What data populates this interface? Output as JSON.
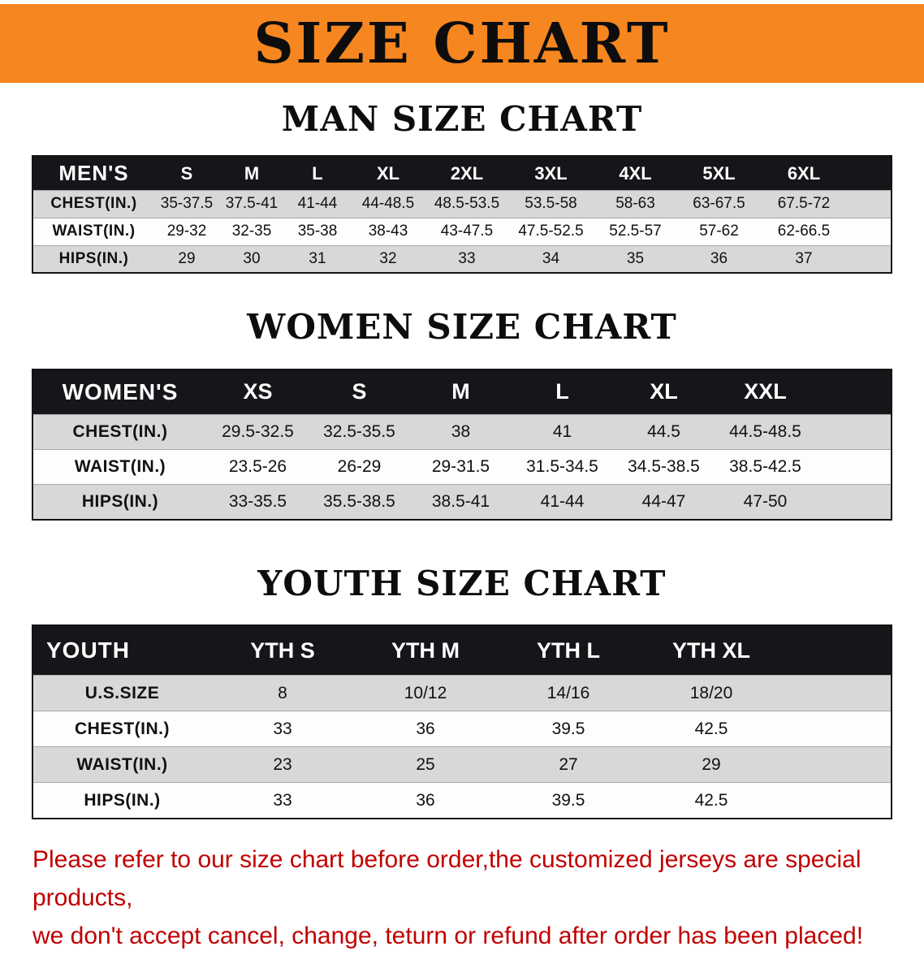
{
  "banner": {
    "title": "SIZE CHART",
    "bg_color": "#F6861F"
  },
  "sections": [
    {
      "heading": "MAN SIZE CHART",
      "table": {
        "label": "MEN'S",
        "columns": [
          "S",
          "M",
          "L",
          "XL",
          "2XL",
          "3XL",
          "4XL",
          "5XL",
          "6XL"
        ],
        "rows": [
          {
            "label": "CHEST(IN.)",
            "values": [
              "35-37.5",
              "37.5-41",
              "41-44",
              "44-48.5",
              "48.5-53.5",
              "53.5-58",
              "58-63",
              "63-67.5",
              "67.5-72"
            ]
          },
          {
            "label": "WAIST(IN.)",
            "values": [
              "29-32",
              "32-35",
              "35-38",
              "38-43",
              "43-47.5",
              "47.5-52.5",
              "52.5-57",
              "57-62",
              "62-66.5"
            ]
          },
          {
            "label": "HIPS(IN.)",
            "values": [
              "29",
              "30",
              "31",
              "32",
              "33",
              "34",
              "35",
              "36",
              "37"
            ]
          }
        ]
      }
    },
    {
      "heading": "WOMEN SIZE CHART",
      "table": {
        "label": "WOMEN'S",
        "columns": [
          "XS",
          "S",
          "M",
          "L",
          "XL",
          "XXL"
        ],
        "rows": [
          {
            "label": "CHEST(IN.)",
            "values": [
              "29.5-32.5",
              "32.5-35.5",
              "38",
              "41",
              "44.5",
              "44.5-48.5"
            ]
          },
          {
            "label": "WAIST(IN.)",
            "values": [
              "23.5-26",
              "26-29",
              "29-31.5",
              "31.5-34.5",
              "34.5-38.5",
              "38.5-42.5"
            ]
          },
          {
            "label": "HIPS(IN.)",
            "values": [
              "33-35.5",
              "35.5-38.5",
              "38.5-41",
              "41-44",
              "44-47",
              "47-50"
            ]
          }
        ]
      }
    },
    {
      "heading": "YOUTH SIZE CHART",
      "table": {
        "label": "YOUTH",
        "columns": [
          "YTH S",
          "YTH M",
          "YTH L",
          "YTH XL"
        ],
        "rows": [
          {
            "label": "U.S.SIZE",
            "values": [
              "8",
              "10/12",
              "14/16",
              "18/20"
            ]
          },
          {
            "label": "CHEST(IN.)",
            "values": [
              "33",
              "36",
              "39.5",
              "42.5"
            ]
          },
          {
            "label": "WAIST(IN.)",
            "values": [
              "23",
              "25",
              "27",
              "29"
            ]
          },
          {
            "label": "HIPS(IN.)",
            "values": [
              "33",
              "36",
              "39.5",
              "42.5"
            ]
          }
        ]
      }
    }
  ],
  "disclaimer": {
    "lines": [
      "Please refer to our size chart before order,the customized jerseys are special products,",
      "we don't accept cancel, change, teturn or refund after order has been placed!"
    ],
    "color": "#C00000"
  }
}
